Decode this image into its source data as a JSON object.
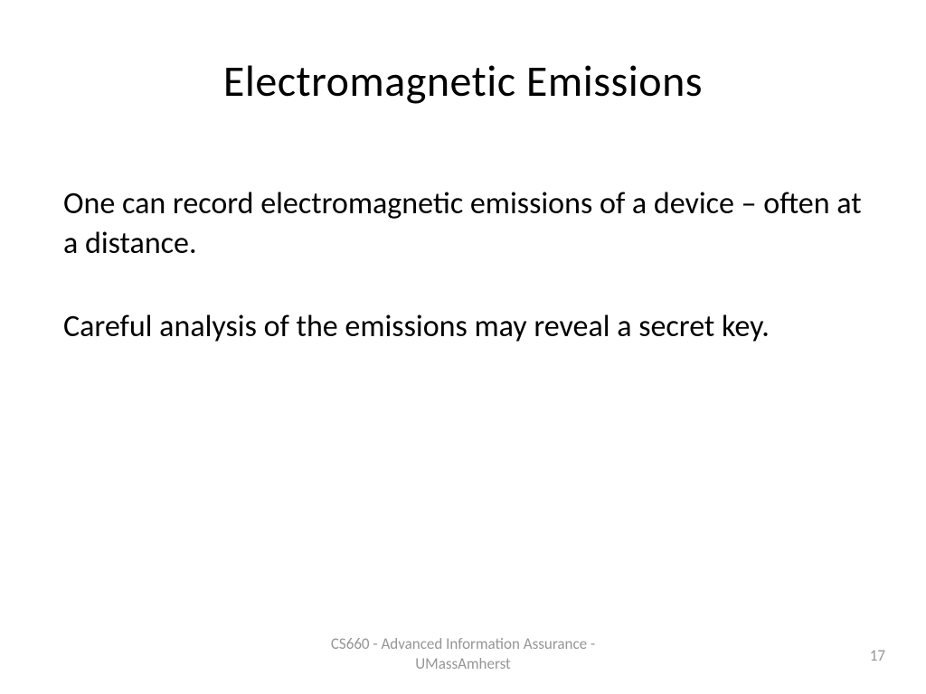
{
  "slide": {
    "title": "Electromagnetic Emissions",
    "paragraphs": [
      "One can record electromagnetic emissions of a device – often at a distance.",
      "Careful analysis of the emissions may reveal a secret key."
    ],
    "footer_line1": "CS660 - Advanced Information Assurance -",
    "footer_line2": "UMassAmherst",
    "page_number": "17"
  },
  "styling": {
    "background_color": "#ffffff",
    "text_color": "#000000",
    "footer_color": "#969696",
    "title_fontsize": 48,
    "body_fontsize": 34,
    "footer_fontsize": 17,
    "font_family": "Calibri"
  }
}
